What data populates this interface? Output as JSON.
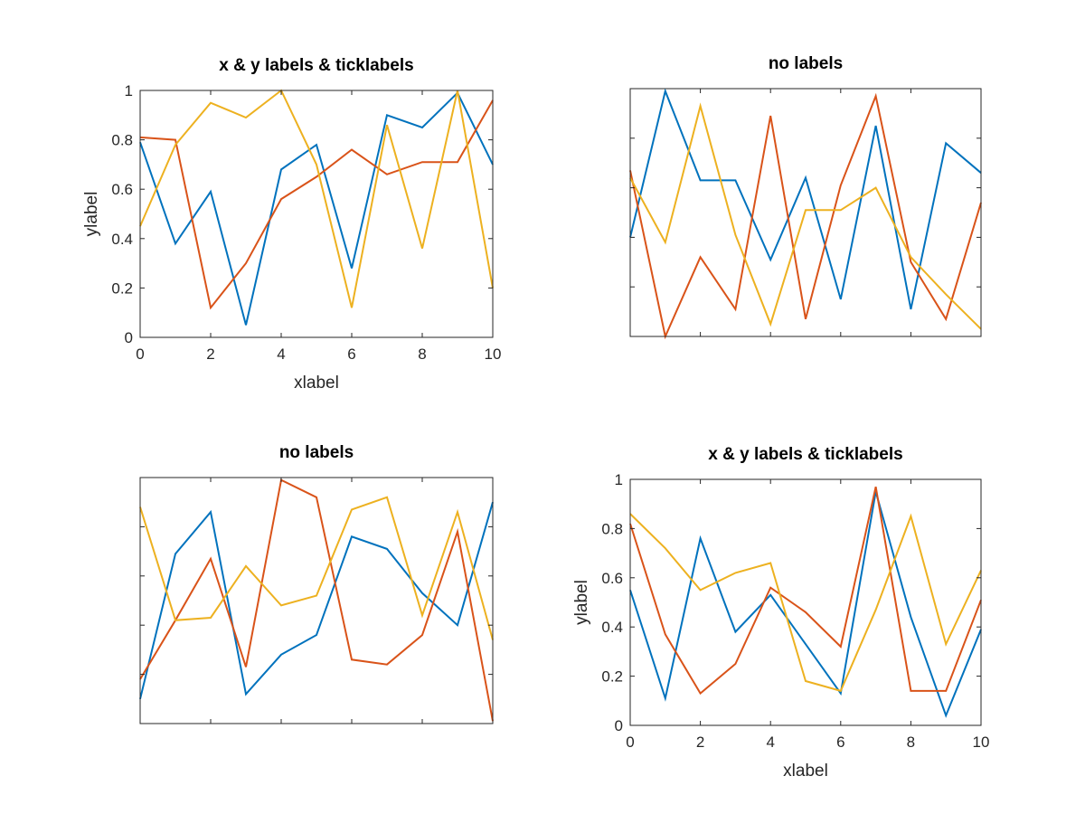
{
  "colors": {
    "series1": "#0072BD",
    "series2": "#D95319",
    "series3": "#EDB120",
    "axis": "#262626"
  },
  "chart_data": [
    {
      "type": "line",
      "title": "x & y labels & ticklabels",
      "xlabel": "xlabel",
      "ylabel": "ylabel",
      "xlim": [
        0,
        10
      ],
      "ylim": [
        0,
        1
      ],
      "xticks": [
        0,
        2,
        4,
        6,
        8,
        10
      ],
      "yticks": [
        0,
        0.2,
        0.4,
        0.6,
        0.8,
        1
      ],
      "xticklabels": [
        "0",
        "2",
        "4",
        "6",
        "8",
        "10"
      ],
      "yticklabels": [
        "0",
        "0.2",
        "0.4",
        "0.6",
        "0.8",
        "1"
      ],
      "grid": false,
      "x": [
        0,
        1,
        2,
        3,
        4,
        5,
        6,
        7,
        8,
        9,
        10
      ],
      "series": [
        {
          "values": [
            0.79,
            0.38,
            0.59,
            0.05,
            0.68,
            0.78,
            0.28,
            0.9,
            0.85,
            0.99,
            0.7
          ]
        },
        {
          "values": [
            0.81,
            0.8,
            0.12,
            0.3,
            0.56,
            0.65,
            0.76,
            0.66,
            0.71,
            0.71,
            0.96
          ]
        },
        {
          "values": [
            0.45,
            0.78,
            0.95,
            0.89,
            1.0,
            0.7,
            0.12,
            0.86,
            0.36,
            1.0,
            0.2
          ]
        }
      ]
    },
    {
      "type": "line",
      "title": "no labels",
      "xlabel": "",
      "ylabel": "",
      "xlim": [
        0,
        10
      ],
      "ylim": [
        0,
        1
      ],
      "xticks": [
        0,
        2,
        4,
        6,
        8,
        10
      ],
      "yticks": [
        0,
        0.2,
        0.4,
        0.6,
        0.8,
        1
      ],
      "xticklabels": [],
      "yticklabels": [],
      "grid": false,
      "x": [
        0,
        1,
        2,
        3,
        4,
        5,
        6,
        7,
        8,
        9,
        10
      ],
      "series": [
        {
          "values": [
            0.4,
            0.99,
            0.63,
            0.63,
            0.31,
            0.64,
            0.15,
            0.85,
            0.11,
            0.78,
            0.66
          ]
        },
        {
          "values": [
            0.67,
            0.0,
            0.32,
            0.11,
            0.89,
            0.07,
            0.61,
            0.97,
            0.3,
            0.07,
            0.54
          ]
        },
        {
          "values": [
            0.64,
            0.38,
            0.93,
            0.41,
            0.05,
            0.51,
            0.51,
            0.6,
            0.32,
            0.17,
            0.03
          ]
        }
      ]
    },
    {
      "type": "line",
      "title": "no labels",
      "xlabel": "",
      "ylabel": "",
      "xlim": [
        0,
        10
      ],
      "ylim": [
        0,
        1
      ],
      "xticks": [
        0,
        2,
        4,
        6,
        8,
        10
      ],
      "yticks": [
        0,
        0.2,
        0.4,
        0.6,
        0.8,
        1
      ],
      "xticklabels": [],
      "yticklabels": [],
      "grid": false,
      "x": [
        0,
        1,
        2,
        3,
        4,
        5,
        6,
        7,
        8,
        9,
        10
      ],
      "series": [
        {
          "values": [
            0.1,
            0.69,
            0.86,
            0.12,
            0.28,
            0.36,
            0.76,
            0.71,
            0.53,
            0.4,
            0.9
          ]
        },
        {
          "values": [
            0.18,
            0.42,
            0.67,
            0.23,
            0.99,
            0.92,
            0.26,
            0.24,
            0.36,
            0.78,
            0.01
          ]
        },
        {
          "values": [
            0.88,
            0.42,
            0.43,
            0.64,
            0.48,
            0.52,
            0.87,
            0.92,
            0.44,
            0.86,
            0.34
          ]
        }
      ]
    },
    {
      "type": "line",
      "title": "x & y labels & ticklabels",
      "xlabel": "xlabel",
      "ylabel": "ylabel",
      "xlim": [
        0,
        10
      ],
      "ylim": [
        0,
        1
      ],
      "xticks": [
        0,
        2,
        4,
        6,
        8,
        10
      ],
      "yticks": [
        0,
        0.2,
        0.4,
        0.6,
        0.8,
        1
      ],
      "xticklabels": [
        "0",
        "2",
        "4",
        "6",
        "8",
        "10"
      ],
      "yticklabels": [
        "0",
        "0.2",
        "0.4",
        "0.6",
        "0.8",
        "1"
      ],
      "grid": false,
      "x": [
        0,
        1,
        2,
        3,
        4,
        5,
        6,
        7,
        8,
        9,
        10
      ],
      "series": [
        {
          "values": [
            0.55,
            0.11,
            0.76,
            0.38,
            0.53,
            0.33,
            0.13,
            0.95,
            0.44,
            0.04,
            0.39
          ]
        },
        {
          "values": [
            0.82,
            0.37,
            0.13,
            0.25,
            0.56,
            0.46,
            0.32,
            0.97,
            0.14,
            0.14,
            0.51
          ]
        },
        {
          "values": [
            0.86,
            0.72,
            0.55,
            0.62,
            0.66,
            0.18,
            0.14,
            0.47,
            0.85,
            0.33,
            0.63
          ]
        }
      ]
    }
  ]
}
